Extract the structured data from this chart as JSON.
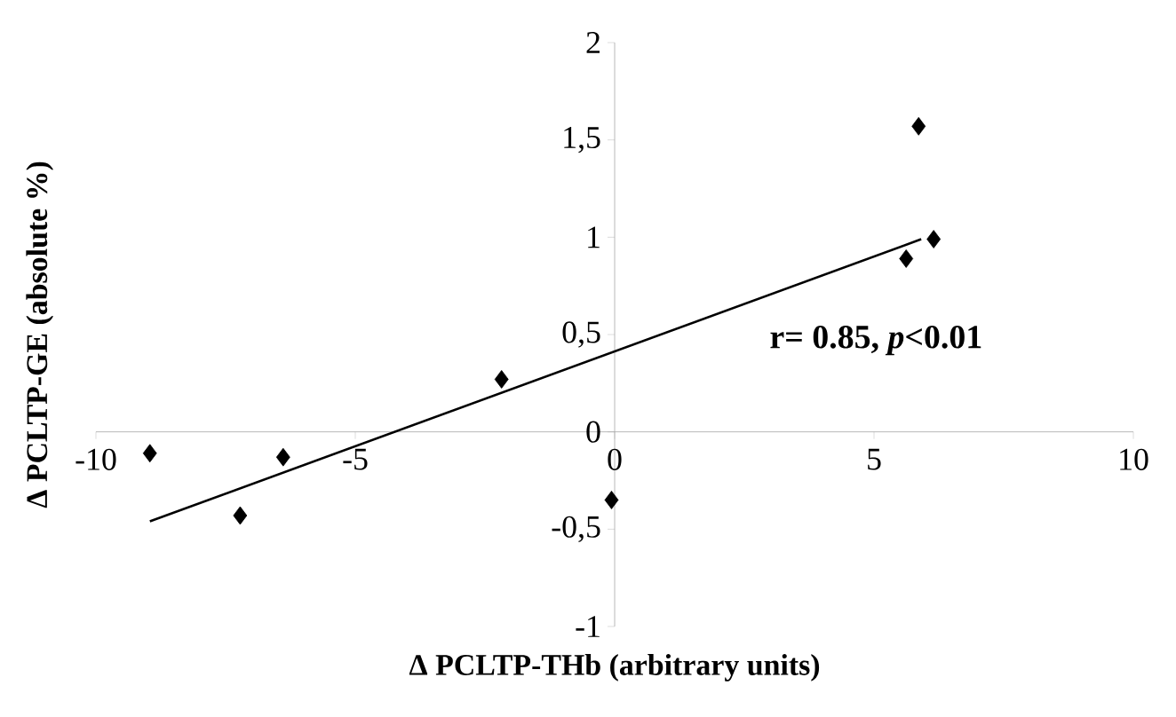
{
  "chart_data": {
    "type": "scatter",
    "xlabel": "Δ PCLTP-THb (arbitrary units)",
    "ylabel": "Δ PCLTP-GE (absolute %)",
    "annotations": [
      "r= 0.85, *p*<0.01"
    ],
    "xlim": [
      -10,
      10
    ],
    "xticks": [
      -10,
      -5,
      0,
      5,
      10
    ],
    "ylim": [
      -1,
      2
    ],
    "yticks": [
      -1,
      {
        "value": -0.5,
        "label": "-0,5"
      },
      0,
      {
        "value": 0.5,
        "label": "0,5"
      },
      1,
      {
        "value": 1.5,
        "label": "1,5"
      },
      2
    ],
    "marker": "diamond",
    "series": [
      {
        "color": "#000000",
        "x": [
          -8.96,
          -7.22,
          -6.39,
          -2.18,
          -0.06,
          5.62,
          5.86,
          6.15
        ],
        "values": [
          -0.11,
          -0.43,
          -0.13,
          0.27,
          -0.35,
          0.89,
          1.57,
          0.99
        ]
      },
      {
        "type": "line",
        "color": "#000000",
        "marker": "none",
        "x": [
          -8.96,
          5.91
        ],
        "values": [
          -0.46,
          0.99
        ]
      }
    ]
  }
}
